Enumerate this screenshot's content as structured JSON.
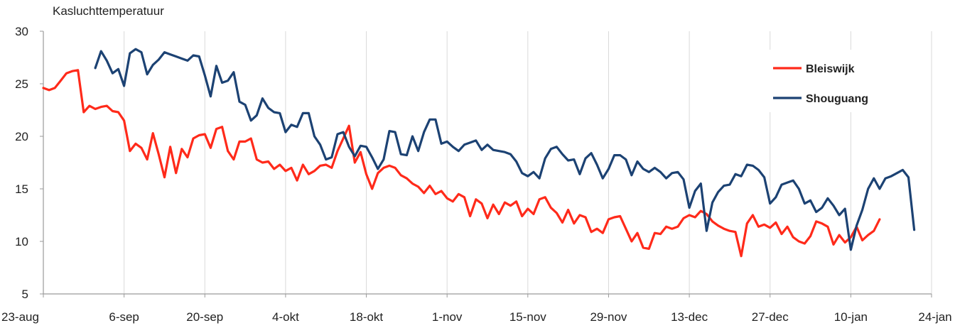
{
  "chart_data": {
    "type": "line",
    "title": "Kasluchttemperatuur",
    "xlabel": "",
    "ylabel": "",
    "ylim": [
      5,
      30
    ],
    "yticks": [
      5,
      10,
      15,
      20,
      25,
      30
    ],
    "x_start": "23-aug",
    "x_end": "24-jan",
    "x_days": 154,
    "xticks": [
      {
        "label": "23-aug",
        "day": 0
      },
      {
        "label": "6-sep",
        "day": 14
      },
      {
        "label": "20-sep",
        "day": 28
      },
      {
        "label": "4-okt",
        "day": 42
      },
      {
        "label": "18-okt",
        "day": 56
      },
      {
        "label": "1-nov",
        "day": 70
      },
      {
        "label": "15-nov",
        "day": 84
      },
      {
        "label": "29-nov",
        "day": 98
      },
      {
        "label": "13-dec",
        "day": 112
      },
      {
        "label": "27-dec",
        "day": 126
      },
      {
        "label": "10-jan",
        "day": 140
      },
      {
        "label": "24-jan",
        "day": 154
      }
    ],
    "grid": "vertical",
    "legend_position": "top-right",
    "series": [
      {
        "name": "Bleiswijk",
        "color": "#ff2a1a",
        "points": [
          [
            0,
            24.6
          ],
          [
            1,
            24.4
          ],
          [
            2,
            24.6
          ],
          [
            3,
            25.3
          ],
          [
            4,
            26.0
          ],
          [
            5,
            26.2
          ],
          [
            6,
            26.3
          ],
          [
            7,
            22.3
          ],
          [
            8,
            22.9
          ],
          [
            9,
            22.6
          ],
          [
            10,
            22.8
          ],
          [
            11,
            22.9
          ],
          [
            12,
            22.4
          ],
          [
            13,
            22.3
          ],
          [
            14,
            21.5
          ],
          [
            15,
            18.6
          ],
          [
            16,
            19.3
          ],
          [
            17,
            18.9
          ],
          [
            18,
            17.8
          ],
          [
            19,
            20.3
          ],
          [
            20,
            18.3
          ],
          [
            21,
            16.1
          ],
          [
            22,
            19.0
          ],
          [
            23,
            16.5
          ],
          [
            24,
            18.8
          ],
          [
            25,
            18.0
          ],
          [
            26,
            19.8
          ],
          [
            27,
            20.1
          ],
          [
            28,
            20.2
          ],
          [
            29,
            18.9
          ],
          [
            30,
            20.7
          ],
          [
            31,
            20.9
          ],
          [
            32,
            18.6
          ],
          [
            33,
            17.8
          ],
          [
            34,
            19.5
          ],
          [
            35,
            19.5
          ],
          [
            36,
            19.8
          ],
          [
            37,
            17.8
          ],
          [
            38,
            17.5
          ],
          [
            39,
            17.6
          ],
          [
            40,
            16.9
          ],
          [
            41,
            17.3
          ],
          [
            42,
            16.7
          ],
          [
            43,
            17.0
          ],
          [
            44,
            15.8
          ],
          [
            45,
            17.3
          ],
          [
            46,
            16.4
          ],
          [
            47,
            16.7
          ],
          [
            48,
            17.2
          ],
          [
            49,
            17.3
          ],
          [
            50,
            17.0
          ],
          [
            51,
            18.6
          ],
          [
            52,
            19.8
          ],
          [
            53,
            21.0
          ],
          [
            54,
            17.5
          ],
          [
            55,
            18.5
          ],
          [
            56,
            16.4
          ],
          [
            57,
            15.0
          ],
          [
            58,
            16.5
          ],
          [
            59,
            17.0
          ],
          [
            60,
            17.2
          ],
          [
            61,
            17.0
          ],
          [
            62,
            16.3
          ],
          [
            63,
            16.0
          ],
          [
            64,
            15.5
          ],
          [
            65,
            15.2
          ],
          [
            66,
            14.6
          ],
          [
            67,
            15.3
          ],
          [
            68,
            14.5
          ],
          [
            69,
            14.8
          ],
          [
            70,
            14.1
          ],
          [
            71,
            13.8
          ],
          [
            72,
            14.5
          ],
          [
            73,
            14.2
          ],
          [
            74,
            12.4
          ],
          [
            75,
            14.0
          ],
          [
            76,
            13.6
          ],
          [
            77,
            12.2
          ],
          [
            78,
            13.5
          ],
          [
            79,
            12.6
          ],
          [
            80,
            13.7
          ],
          [
            81,
            13.4
          ],
          [
            82,
            13.8
          ],
          [
            83,
            12.4
          ],
          [
            84,
            13.1
          ],
          [
            85,
            12.6
          ],
          [
            86,
            14.0
          ],
          [
            87,
            14.2
          ],
          [
            88,
            13.2
          ],
          [
            89,
            12.7
          ],
          [
            90,
            11.8
          ],
          [
            91,
            13.0
          ],
          [
            92,
            11.7
          ],
          [
            93,
            12.5
          ],
          [
            94,
            12.3
          ],
          [
            95,
            10.9
          ],
          [
            96,
            11.2
          ],
          [
            97,
            10.8
          ],
          [
            98,
            12.1
          ],
          [
            99,
            12.3
          ],
          [
            100,
            12.4
          ],
          [
            101,
            11.2
          ],
          [
            102,
            10.0
          ],
          [
            103,
            10.8
          ],
          [
            104,
            9.4
          ],
          [
            105,
            9.3
          ],
          [
            106,
            10.8
          ],
          [
            107,
            10.7
          ],
          [
            108,
            11.4
          ],
          [
            109,
            11.2
          ],
          [
            110,
            11.4
          ],
          [
            111,
            12.2
          ],
          [
            112,
            12.5
          ],
          [
            113,
            12.3
          ],
          [
            114,
            12.9
          ],
          [
            115,
            12.6
          ],
          [
            116,
            11.9
          ],
          [
            117,
            11.5
          ],
          [
            118,
            11.2
          ],
          [
            119,
            11.0
          ],
          [
            120,
            10.9
          ],
          [
            121,
            8.6
          ],
          [
            122,
            11.7
          ],
          [
            123,
            12.5
          ],
          [
            124,
            11.4
          ],
          [
            125,
            11.6
          ],
          [
            126,
            11.3
          ],
          [
            127,
            11.8
          ],
          [
            128,
            10.7
          ],
          [
            129,
            11.4
          ],
          [
            130,
            10.4
          ],
          [
            131,
            10.0
          ],
          [
            132,
            9.8
          ],
          [
            133,
            10.5
          ],
          [
            134,
            11.9
          ],
          [
            135,
            11.7
          ],
          [
            136,
            11.4
          ],
          [
            137,
            9.7
          ],
          [
            138,
            10.6
          ],
          [
            139,
            9.9
          ],
          [
            140,
            10.4
          ],
          [
            141,
            11.4
          ],
          [
            142,
            10.1
          ],
          [
            143,
            10.6
          ],
          [
            144,
            11.0
          ],
          [
            145,
            12.1
          ]
        ]
      },
      {
        "name": "Shouguang",
        "color": "#1c4273",
        "points": [
          [
            9,
            26.5
          ],
          [
            10,
            28.1
          ],
          [
            11,
            27.2
          ],
          [
            12,
            26.0
          ],
          [
            13,
            26.4
          ],
          [
            14,
            24.8
          ],
          [
            15,
            27.9
          ],
          [
            16,
            28.3
          ],
          [
            17,
            28.0
          ],
          [
            18,
            25.9
          ],
          [
            19,
            26.8
          ],
          [
            20,
            27.3
          ],
          [
            21,
            28.0
          ],
          [
            22,
            27.8
          ],
          [
            23,
            27.6
          ],
          [
            24,
            27.4
          ],
          [
            25,
            27.2
          ],
          [
            26,
            27.7
          ],
          [
            27,
            27.6
          ],
          [
            28,
            25.8
          ],
          [
            29,
            23.8
          ],
          [
            30,
            26.7
          ],
          [
            31,
            25.1
          ],
          [
            32,
            25.3
          ],
          [
            33,
            26.1
          ],
          [
            34,
            23.3
          ],
          [
            35,
            23.0
          ],
          [
            36,
            21.5
          ],
          [
            37,
            22.0
          ],
          [
            38,
            23.6
          ],
          [
            39,
            22.7
          ],
          [
            40,
            22.3
          ],
          [
            41,
            22.2
          ],
          [
            42,
            20.4
          ],
          [
            43,
            21.1
          ],
          [
            44,
            20.9
          ],
          [
            45,
            22.2
          ],
          [
            46,
            22.2
          ],
          [
            47,
            20.0
          ],
          [
            48,
            19.2
          ],
          [
            49,
            17.8
          ],
          [
            50,
            18.0
          ],
          [
            51,
            20.2
          ],
          [
            52,
            20.4
          ],
          [
            53,
            19.0
          ],
          [
            54,
            18.1
          ],
          [
            55,
            19.1
          ],
          [
            56,
            19.0
          ],
          [
            57,
            18.0
          ],
          [
            58,
            16.9
          ],
          [
            59,
            17.8
          ],
          [
            60,
            20.5
          ],
          [
            61,
            20.4
          ],
          [
            62,
            18.3
          ],
          [
            63,
            18.2
          ],
          [
            64,
            20.0
          ],
          [
            65,
            18.6
          ],
          [
            66,
            20.4
          ],
          [
            67,
            21.6
          ],
          [
            68,
            21.6
          ],
          [
            69,
            19.3
          ],
          [
            70,
            19.5
          ],
          [
            71,
            19.0
          ],
          [
            72,
            18.6
          ],
          [
            73,
            19.2
          ],
          [
            74,
            19.4
          ],
          [
            75,
            19.6
          ],
          [
            76,
            18.7
          ],
          [
            77,
            19.2
          ],
          [
            78,
            18.7
          ],
          [
            79,
            18.6
          ],
          [
            80,
            18.5
          ],
          [
            81,
            18.3
          ],
          [
            82,
            17.6
          ],
          [
            83,
            16.5
          ],
          [
            84,
            16.2
          ],
          [
            85,
            16.6
          ],
          [
            86,
            16.0
          ],
          [
            87,
            17.9
          ],
          [
            88,
            18.8
          ],
          [
            89,
            19.0
          ],
          [
            90,
            18.3
          ],
          [
            91,
            17.7
          ],
          [
            92,
            17.8
          ],
          [
            93,
            16.4
          ],
          [
            94,
            17.9
          ],
          [
            95,
            18.4
          ],
          [
            96,
            17.3
          ],
          [
            97,
            16.0
          ],
          [
            98,
            16.9
          ],
          [
            99,
            18.2
          ],
          [
            100,
            18.2
          ],
          [
            101,
            17.8
          ],
          [
            102,
            16.3
          ],
          [
            103,
            17.6
          ],
          [
            104,
            16.9
          ],
          [
            105,
            16.6
          ],
          [
            106,
            17.0
          ],
          [
            107,
            16.6
          ],
          [
            108,
            16.0
          ],
          [
            109,
            16.5
          ],
          [
            110,
            16.6
          ],
          [
            111,
            15.9
          ],
          [
            112,
            13.2
          ],
          [
            113,
            14.8
          ],
          [
            114,
            15.5
          ],
          [
            115,
            11.0
          ],
          [
            116,
            13.7
          ],
          [
            117,
            14.7
          ],
          [
            118,
            15.3
          ],
          [
            119,
            15.4
          ],
          [
            120,
            16.4
          ],
          [
            121,
            16.2
          ],
          [
            122,
            17.3
          ],
          [
            123,
            17.2
          ],
          [
            124,
            16.8
          ],
          [
            125,
            16.1
          ],
          [
            126,
            13.6
          ],
          [
            127,
            14.2
          ],
          [
            128,
            15.4
          ],
          [
            129,
            15.6
          ],
          [
            130,
            15.8
          ],
          [
            131,
            15.0
          ],
          [
            132,
            13.6
          ],
          [
            133,
            13.9
          ],
          [
            134,
            12.8
          ],
          [
            135,
            13.2
          ],
          [
            136,
            14.1
          ],
          [
            137,
            13.4
          ],
          [
            138,
            12.5
          ],
          [
            139,
            13.1
          ],
          [
            140,
            9.2
          ],
          [
            141,
            11.5
          ],
          [
            142,
            13.0
          ],
          [
            143,
            15.0
          ],
          [
            144,
            16.0
          ],
          [
            145,
            15.0
          ],
          [
            146,
            16.0
          ],
          [
            147,
            16.2
          ],
          [
            148,
            16.5
          ],
          [
            149,
            16.8
          ],
          [
            150,
            16.1
          ],
          [
            151,
            11.1
          ]
        ]
      }
    ]
  }
}
